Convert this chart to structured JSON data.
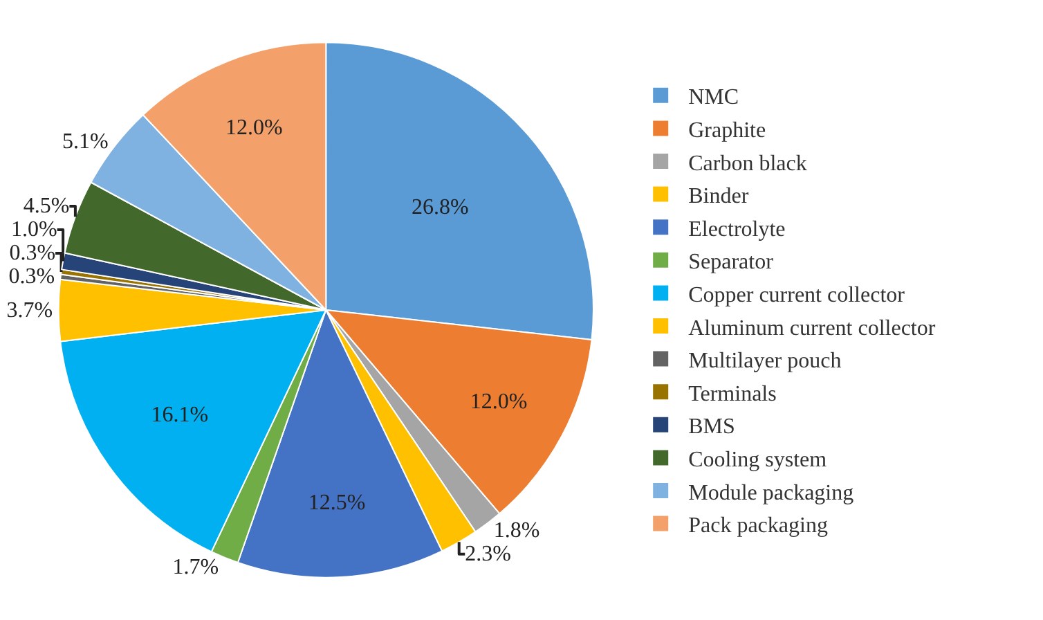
{
  "chart_data": {
    "type": "pie",
    "categories": [
      "NMC",
      "Graphite",
      "Carbon black",
      "Binder",
      "Electrolyte",
      "Separator",
      "Copper current collector",
      "Aluminum current collector",
      "Multilayer pouch",
      "Terminals",
      "BMS",
      "Cooling system",
      "Module packaging",
      "Pack packaging"
    ],
    "values": [
      26.8,
      12.0,
      1.8,
      2.3,
      12.5,
      1.7,
      16.1,
      3.7,
      0.3,
      0.3,
      1.0,
      4.5,
      5.1,
      12.0
    ],
    "value_labels": [
      "26.8%",
      "12.0%",
      "1.8%",
      "2.3%",
      "12.5%",
      "1.7%",
      "16.1%",
      "3.7%",
      "0.3%",
      "0.3%",
      "1.0%",
      "4.5%",
      "5.1%",
      "12.0%"
    ],
    "colors": [
      "#5b9bd5",
      "#ed7d31",
      "#a5a5a5",
      "#ffc000",
      "#4472c4",
      "#70ad47",
      "#00b0f0",
      "#ffc000",
      "#636363",
      "#997300",
      "#264478",
      "#43682b",
      "#7fb2e0",
      "#f4a06a"
    ],
    "legend": "right"
  }
}
